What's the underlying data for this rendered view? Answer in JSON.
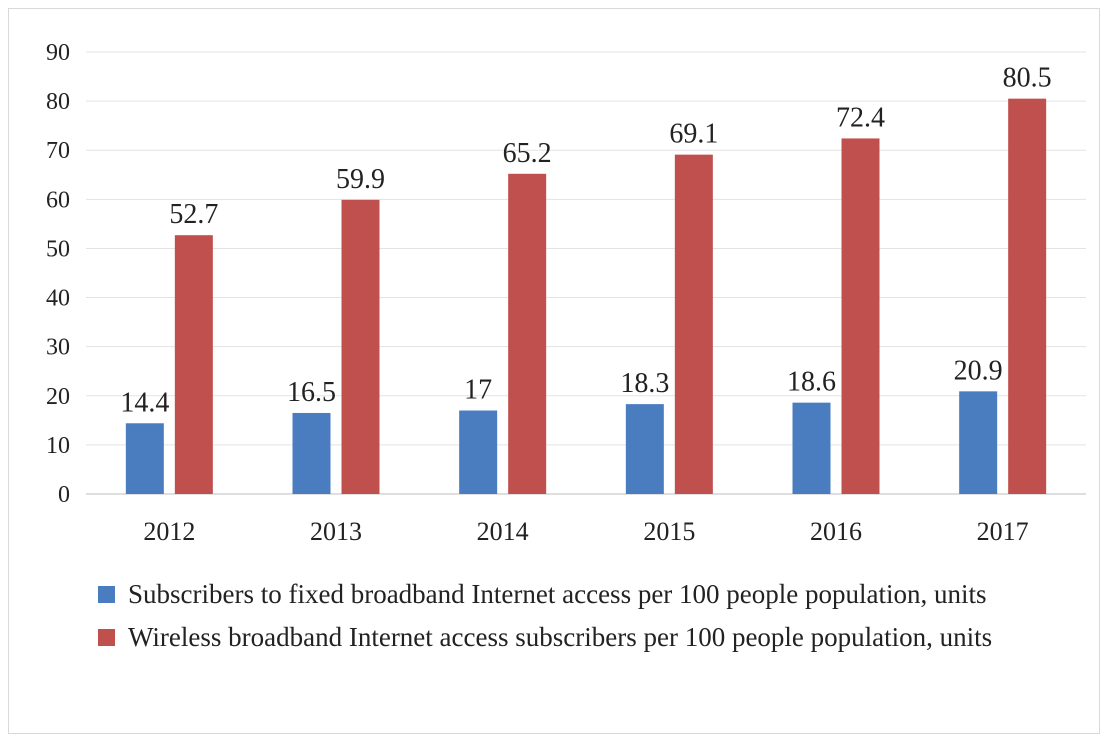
{
  "chart_data": {
    "type": "bar",
    "categories": [
      "2012",
      "2013",
      "2014",
      "2015",
      "2016",
      "2017"
    ],
    "series": [
      {
        "name": "Subscribers to fixed broadband Internet access per 100 people population, units",
        "values": [
          14.4,
          16.5,
          17,
          18.3,
          18.6,
          20.9
        ],
        "labels": [
          "14.4",
          "16.5",
          "17",
          "18.3",
          "18.6",
          "20.9"
        ],
        "color": "#4a7cc0"
      },
      {
        "name": "Wireless broadband Internet access subscribers per 100 people population, units",
        "values": [
          52.7,
          59.9,
          65.2,
          69.1,
          72.4,
          80.5
        ],
        "labels": [
          "52.7",
          "59.9",
          "65.2",
          "69.1",
          "72.4",
          "80.5"
        ],
        "color": "#c0504d"
      }
    ],
    "y_ticks": [
      "0",
      "10",
      "20",
      "30",
      "40",
      "50",
      "60",
      "70",
      "80",
      "90"
    ],
    "ylim": [
      0,
      90
    ],
    "grid": true,
    "legend_position": "bottom"
  }
}
